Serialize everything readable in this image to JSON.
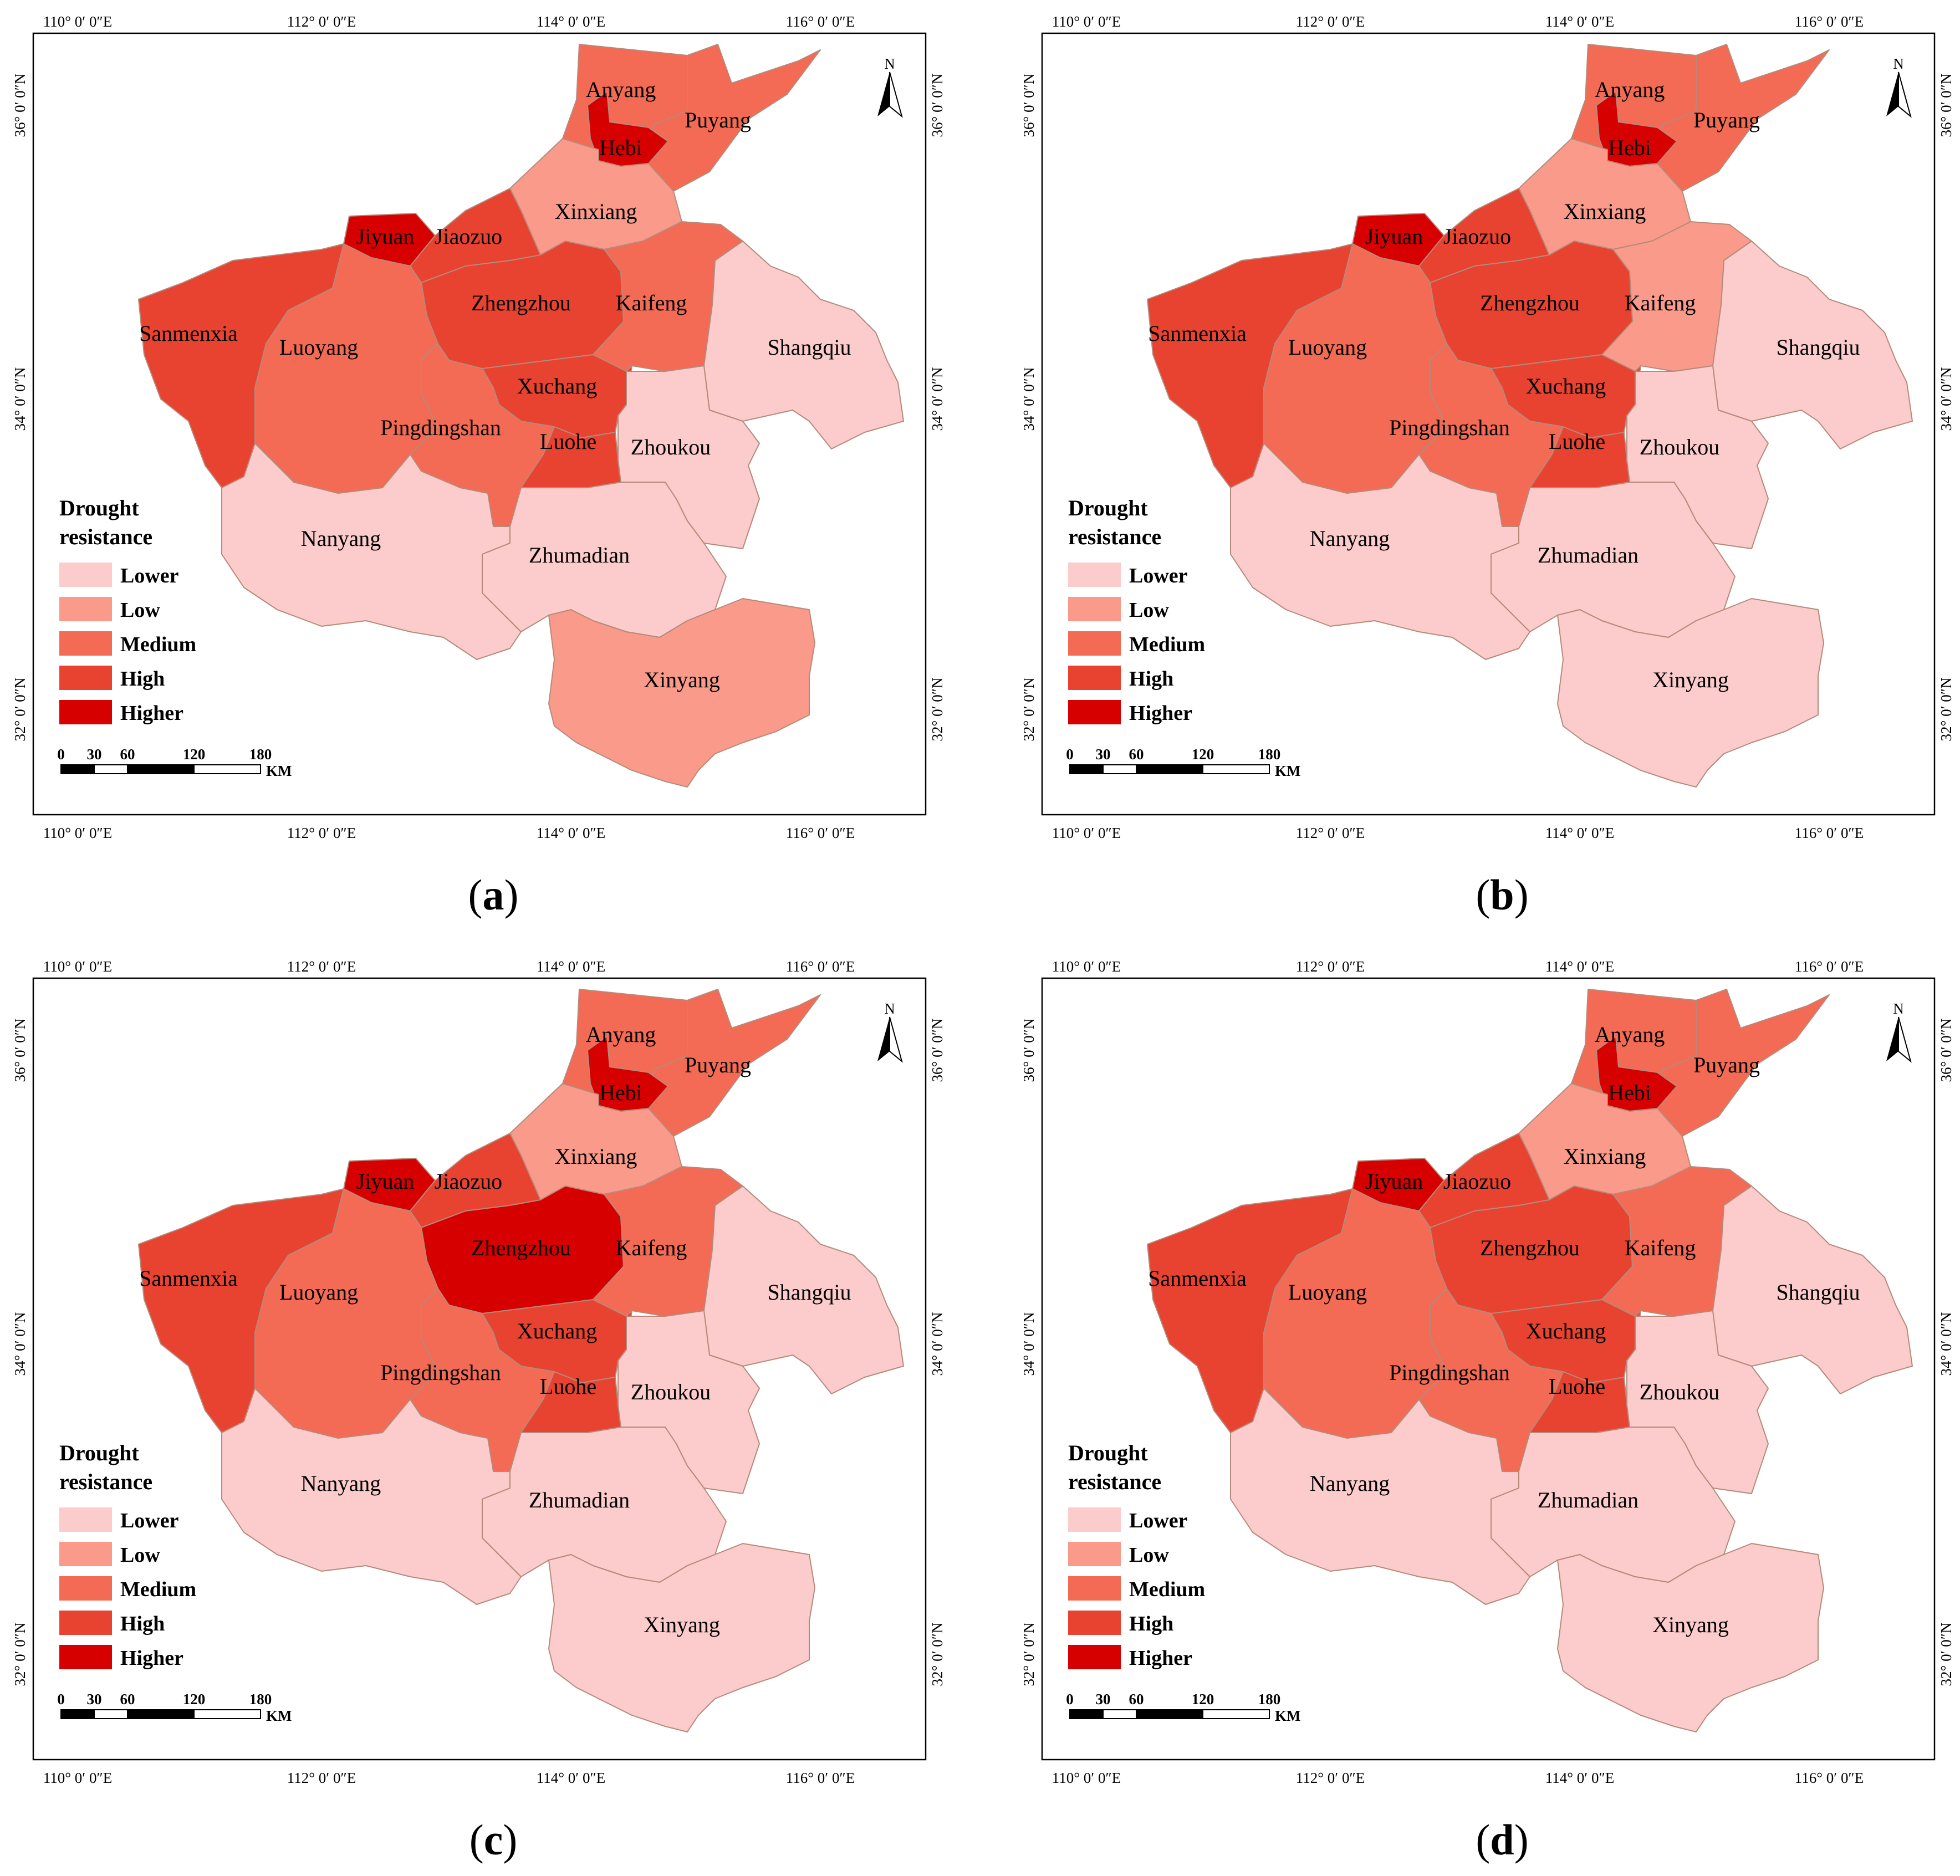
{
  "legend": {
    "title_line1": "Drought",
    "title_line2": "resistance",
    "classes": [
      {
        "label": "Lower",
        "color": "#fccbcb"
      },
      {
        "label": "Low",
        "color": "#f99a8a"
      },
      {
        "label": "Medium",
        "color": "#f36b55"
      },
      {
        "label": "High",
        "color": "#e84331"
      },
      {
        "label": "Higher",
        "color": "#d60000"
      }
    ]
  },
  "axes": {
    "lon_labels": [
      "110° 0′ 0″E",
      "112° 0′ 0″E",
      "114° 0′ 0″E",
      "116° 0′ 0″E"
    ],
    "lat_labels": [
      "36° 0′ 0″N",
      "34° 0′ 0″N",
      "32° 0′ 0″N"
    ]
  },
  "north_arrow": {
    "label": "N"
  },
  "scale_bar": {
    "ticks": [
      "0",
      "30",
      "60",
      "120",
      "180"
    ],
    "unit": "KM"
  },
  "cities": [
    "Anyang",
    "Puyang",
    "Hebi",
    "Xinxiang",
    "Jiyuan",
    "Jiaozuo",
    "Zhengzhou",
    "Kaifeng",
    "Sanmenxia",
    "Luoyang",
    "Shangqiu",
    "Xuchang",
    "Pingdingshan",
    "Luohe",
    "Zhoukou",
    "Nanyang",
    "Zhumadian",
    "Xinyang"
  ],
  "panels": [
    {
      "label": "a",
      "classes": {
        "Anyang": "Medium",
        "Puyang": "Medium",
        "Hebi": "Higher",
        "Xinxiang": "Low",
        "Jiyuan": "Higher",
        "Jiaozuo": "High",
        "Zhengzhou": "High",
        "Kaifeng": "Medium",
        "Sanmenxia": "High",
        "Luoyang": "Medium",
        "Shangqiu": "Lower",
        "Xuchang": "High",
        "Pingdingshan": "Medium",
        "Luohe": "High",
        "Zhoukou": "Lower",
        "Nanyang": "Lower",
        "Zhumadian": "Lower",
        "Xinyang": "Low"
      }
    },
    {
      "label": "b",
      "classes": {
        "Anyang": "Medium",
        "Puyang": "Medium",
        "Hebi": "Higher",
        "Xinxiang": "Low",
        "Jiyuan": "Higher",
        "Jiaozuo": "High",
        "Zhengzhou": "High",
        "Kaifeng": "Low",
        "Sanmenxia": "High",
        "Luoyang": "Medium",
        "Shangqiu": "Lower",
        "Xuchang": "High",
        "Pingdingshan": "Medium",
        "Luohe": "High",
        "Zhoukou": "Lower",
        "Nanyang": "Lower",
        "Zhumadian": "Lower",
        "Xinyang": "Lower"
      }
    },
    {
      "label": "c",
      "classes": {
        "Anyang": "Medium",
        "Puyang": "Medium",
        "Hebi": "Higher",
        "Xinxiang": "Low",
        "Jiyuan": "Higher",
        "Jiaozuo": "High",
        "Zhengzhou": "Higher",
        "Kaifeng": "Medium",
        "Sanmenxia": "High",
        "Luoyang": "Medium",
        "Shangqiu": "Lower",
        "Xuchang": "High",
        "Pingdingshan": "Medium",
        "Luohe": "High",
        "Zhoukou": "Lower",
        "Nanyang": "Lower",
        "Zhumadian": "Lower",
        "Xinyang": "Lower"
      }
    },
    {
      "label": "d",
      "classes": {
        "Anyang": "Medium",
        "Puyang": "Medium",
        "Hebi": "Higher",
        "Xinxiang": "Low",
        "Jiyuan": "Higher",
        "Jiaozuo": "High",
        "Zhengzhou": "High",
        "Kaifeng": "Medium",
        "Sanmenxia": "High",
        "Luoyang": "Medium",
        "Shangqiu": "Lower",
        "Xuchang": "High",
        "Pingdingshan": "Medium",
        "Luohe": "High",
        "Zhoukou": "Lower",
        "Nanyang": "Lower",
        "Zhumadian": "Lower",
        "Xinyang": "Lower"
      }
    }
  ]
}
